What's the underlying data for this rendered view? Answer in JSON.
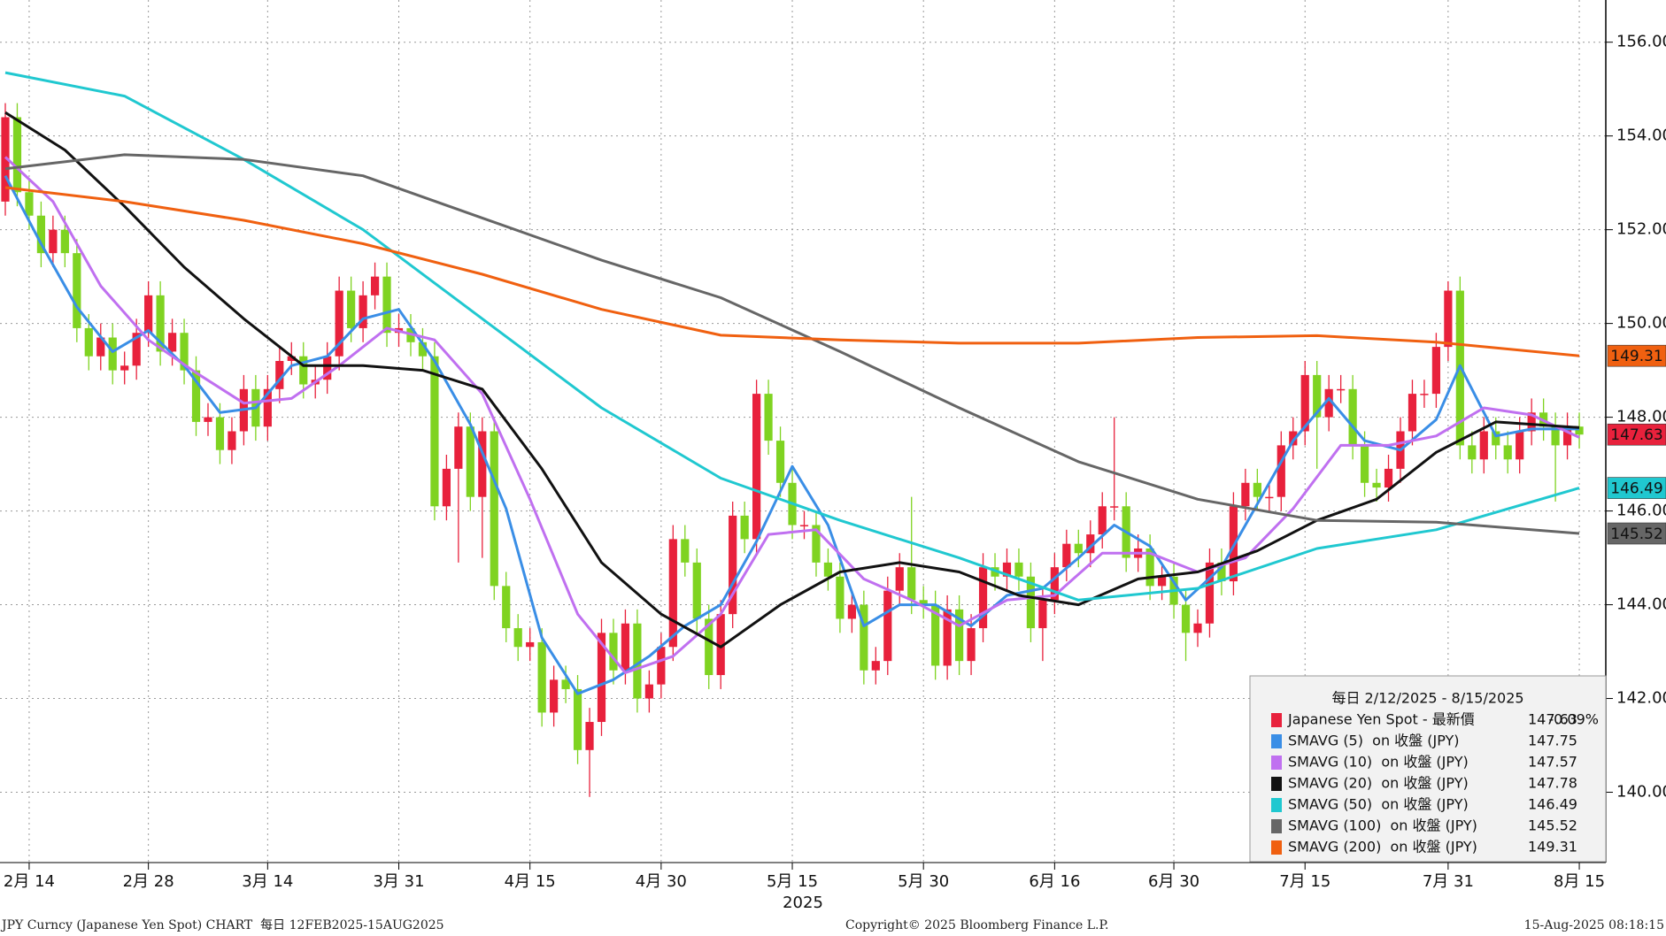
{
  "chart_data": {
    "type": "candlestick",
    "x_label": "2025",
    "legend_header": "每日 2/12/2025 - 8/15/2025",
    "spot_name": "Japanese Yen Spot - 最新價",
    "last": 147.63,
    "change": "-0.09%",
    "up_color": "#e8213c",
    "down_color": "#7fd321",
    "spot_label_color": "#ffffff",
    "grid": true,
    "ylim": [
      138.5,
      156.9
    ],
    "yticks": [
      {
        "value": 140,
        "label": "140.00"
      },
      {
        "value": 142,
        "label": "142.00"
      },
      {
        "value": 144,
        "label": "144.00"
      },
      {
        "value": 146,
        "label": "146.00"
      },
      {
        "value": 148,
        "label": "148.00"
      },
      {
        "value": 150,
        "label": "150.00"
      },
      {
        "value": 152,
        "label": "152.00"
      },
      {
        "value": 154,
        "label": "154.00"
      },
      {
        "value": 156,
        "label": "156.00"
      }
    ],
    "xticks": [
      {
        "value": "2025-02-14",
        "label": "2月 14"
      },
      {
        "value": "2025-02-28",
        "label": "2月 28"
      },
      {
        "value": "2025-03-14",
        "label": "3月 14"
      },
      {
        "value": "2025-03-31",
        "label": "3月 31"
      },
      {
        "value": "2025-04-15",
        "label": "4月 15"
      },
      {
        "value": "2025-04-30",
        "label": "4月 30"
      },
      {
        "value": "2025-05-15",
        "label": "5月 15"
      },
      {
        "value": "2025-05-30",
        "label": "5月 30"
      },
      {
        "value": "2025-06-16",
        "label": "6月 16"
      },
      {
        "value": "2025-06-30",
        "label": "6月 30"
      },
      {
        "value": "2025-07-15",
        "label": "7月 15"
      },
      {
        "value": "2025-07-31",
        "label": "7月 31"
      },
      {
        "value": "2025-08-15",
        "label": "8月 15"
      }
    ],
    "x": [
      "2025-02-12",
      "2025-02-13",
      "2025-02-14",
      "2025-02-17",
      "2025-02-18",
      "2025-02-19",
      "2025-02-20",
      "2025-02-21",
      "2025-02-24",
      "2025-02-25",
      "2025-02-26",
      "2025-02-27",
      "2025-02-28",
      "2025-03-03",
      "2025-03-04",
      "2025-03-05",
      "2025-03-06",
      "2025-03-07",
      "2025-03-10",
      "2025-03-11",
      "2025-03-12",
      "2025-03-13",
      "2025-03-14",
      "2025-03-17",
      "2025-03-18",
      "2025-03-19",
      "2025-03-20",
      "2025-03-21",
      "2025-03-24",
      "2025-03-25",
      "2025-03-26",
      "2025-03-27",
      "2025-03-28",
      "2025-03-31",
      "2025-04-01",
      "2025-04-02",
      "2025-04-03",
      "2025-04-04",
      "2025-04-07",
      "2025-04-08",
      "2025-04-09",
      "2025-04-10",
      "2025-04-11",
      "2025-04-14",
      "2025-04-15",
      "2025-04-16",
      "2025-04-17",
      "2025-04-18",
      "2025-04-21",
      "2025-04-22",
      "2025-04-23",
      "2025-04-24",
      "2025-04-25",
      "2025-04-28",
      "2025-04-29",
      "2025-04-30",
      "2025-05-01",
      "2025-05-02",
      "2025-05-05",
      "2025-05-06",
      "2025-05-07",
      "2025-05-08",
      "2025-05-09",
      "2025-05-12",
      "2025-05-13",
      "2025-05-14",
      "2025-05-15",
      "2025-05-16",
      "2025-05-19",
      "2025-05-20",
      "2025-05-21",
      "2025-05-22",
      "2025-05-23",
      "2025-05-26",
      "2025-05-27",
      "2025-05-28",
      "2025-05-29",
      "2025-05-30",
      "2025-06-02",
      "2025-06-03",
      "2025-06-04",
      "2025-06-05",
      "2025-06-06",
      "2025-06-09",
      "2025-06-10",
      "2025-06-11",
      "2025-06-12",
      "2025-06-13",
      "2025-06-16",
      "2025-06-17",
      "2025-06-18",
      "2025-06-19",
      "2025-06-20",
      "2025-06-23",
      "2025-06-24",
      "2025-06-25",
      "2025-06-26",
      "2025-06-27",
      "2025-06-30",
      "2025-07-01",
      "2025-07-02",
      "2025-07-03",
      "2025-07-04",
      "2025-07-07",
      "2025-07-08",
      "2025-07-09",
      "2025-07-10",
      "2025-07-11",
      "2025-07-14",
      "2025-07-15",
      "2025-07-16",
      "2025-07-17",
      "2025-07-18",
      "2025-07-21",
      "2025-07-22",
      "2025-07-23",
      "2025-07-24",
      "2025-07-25",
      "2025-07-28",
      "2025-07-29",
      "2025-07-30",
      "2025-07-31",
      "2025-08-01",
      "2025-08-04",
      "2025-08-05",
      "2025-08-06",
      "2025-08-07",
      "2025-08-08",
      "2025-08-11",
      "2025-08-12",
      "2025-08-13",
      "2025-08-14",
      "2025-08-15"
    ],
    "open": [
      152.6,
      154.4,
      152.8,
      152.3,
      151.5,
      152.0,
      151.5,
      149.9,
      149.3,
      149.7,
      149.0,
      149.1,
      149.8,
      150.6,
      149.4,
      149.8,
      149.0,
      147.9,
      148.0,
      147.3,
      147.7,
      148.6,
      147.8,
      148.6,
      149.2,
      149.3,
      148.7,
      148.8,
      149.3,
      150.7,
      149.9,
      150.6,
      151.0,
      149.8,
      149.9,
      149.6,
      149.3,
      146.1,
      146.9,
      147.8,
      146.3,
      147.7,
      144.4,
      143.5,
      143.1,
      143.2,
      141.7,
      142.4,
      142.2,
      140.9,
      141.5,
      143.4,
      142.6,
      143.6,
      142.0,
      142.3,
      143.1,
      145.4,
      144.9,
      143.7,
      142.5,
      143.8,
      145.9,
      145.4,
      148.5,
      147.5,
      146.6,
      145.7,
      145.7,
      144.9,
      144.6,
      143.7,
      144.0,
      142.6,
      142.8,
      144.3,
      144.8,
      144.1,
      144.0,
      142.7,
      143.9,
      142.8,
      143.5,
      144.8,
      144.6,
      144.9,
      144.6,
      143.5,
      144.1,
      144.8,
      145.3,
      145.1,
      145.5,
      146.1,
      146.1,
      145.0,
      145.2,
      144.4,
      144.6,
      144.0,
      143.4,
      143.6,
      144.9,
      144.5,
      146.1,
      146.6,
      146.3,
      146.3,
      147.4,
      147.7,
      148.9,
      148.0,
      148.6,
      148.6,
      147.4,
      146.6,
      146.5,
      146.9,
      147.7,
      148.5,
      148.5,
      149.5,
      150.7,
      147.4,
      147.1,
      147.7,
      147.4,
      147.1,
      147.7,
      148.1,
      147.8,
      147.4,
      147.8
    ],
    "high": [
      154.7,
      154.7,
      153.1,
      152.6,
      152.3,
      152.3,
      151.8,
      150.2,
      150.0,
      150.0,
      149.4,
      150.1,
      150.9,
      150.9,
      150.1,
      150.1,
      149.3,
      148.3,
      148.3,
      148.0,
      148.9,
      148.9,
      148.9,
      149.5,
      149.6,
      149.6,
      149.1,
      149.6,
      151.0,
      151.0,
      150.9,
      151.3,
      151.3,
      150.2,
      150.2,
      149.9,
      149.6,
      147.2,
      148.1,
      148.1,
      148.0,
      148.0,
      144.7,
      143.8,
      143.5,
      143.5,
      142.7,
      142.7,
      142.5,
      141.8,
      143.7,
      143.7,
      143.9,
      143.9,
      142.6,
      143.4,
      145.7,
      145.7,
      145.2,
      144.0,
      144.1,
      146.2,
      146.2,
      148.8,
      148.8,
      147.8,
      146.9,
      146.0,
      146.0,
      145.2,
      144.9,
      144.3,
      144.3,
      143.1,
      144.6,
      145.1,
      146.3,
      144.4,
      144.3,
      144.2,
      144.2,
      143.8,
      145.1,
      145.1,
      145.2,
      145.2,
      144.9,
      144.4,
      145.1,
      145.6,
      145.6,
      145.8,
      146.4,
      148.0,
      146.4,
      145.5,
      145.5,
      144.9,
      144.9,
      144.3,
      143.9,
      145.2,
      145.2,
      146.4,
      146.9,
      146.9,
      146.6,
      147.7,
      148.0,
      149.2,
      149.2,
      148.9,
      148.9,
      148.9,
      147.7,
      146.9,
      147.2,
      148.0,
      148.8,
      148.8,
      149.8,
      150.9,
      151.0,
      147.7,
      148.0,
      148.0,
      147.7,
      148.0,
      148.4,
      148.4,
      148.1,
      148.1,
      148.1
    ],
    "low": [
      152.3,
      152.5,
      152.0,
      151.2,
      151.2,
      151.2,
      149.6,
      149.0,
      149.0,
      148.7,
      148.7,
      148.8,
      149.5,
      149.1,
      149.1,
      148.7,
      147.6,
      147.6,
      147.0,
      147.0,
      147.4,
      147.5,
      147.5,
      148.3,
      148.9,
      148.4,
      148.4,
      148.5,
      149.0,
      149.6,
      149.6,
      150.3,
      149.5,
      149.5,
      149.3,
      149.0,
      145.8,
      145.8,
      144.9,
      146.0,
      145.0,
      144.1,
      143.2,
      142.8,
      142.8,
      141.4,
      141.4,
      141.9,
      140.6,
      139.9,
      141.2,
      142.3,
      142.3,
      141.7,
      141.7,
      142.0,
      142.8,
      144.6,
      143.4,
      142.2,
      142.2,
      143.5,
      145.1,
      145.1,
      147.2,
      146.3,
      145.4,
      145.4,
      144.6,
      144.3,
      143.4,
      143.4,
      142.3,
      142.3,
      142.5,
      144.0,
      143.8,
      143.7,
      142.4,
      142.4,
      142.5,
      142.5,
      143.2,
      144.3,
      144.3,
      144.3,
      143.2,
      142.8,
      143.8,
      144.5,
      144.8,
      144.8,
      145.2,
      145.8,
      144.7,
      144.7,
      144.1,
      144.1,
      143.7,
      142.8,
      143.1,
      143.3,
      144.2,
      144.2,
      145.8,
      146.0,
      146.0,
      146.0,
      147.1,
      147.4,
      146.9,
      147.7,
      148.3,
      147.1,
      146.3,
      146.2,
      146.2,
      146.6,
      147.4,
      148.2,
      148.2,
      149.2,
      147.1,
      146.8,
      146.8,
      147.1,
      146.8,
      146.8,
      147.4,
      147.5,
      146.2,
      147.1,
      147.33
    ],
    "close": [
      154.4,
      152.8,
      152.3,
      151.5,
      152.0,
      151.5,
      149.9,
      149.3,
      149.7,
      149.0,
      149.1,
      149.8,
      150.6,
      149.4,
      149.8,
      149.0,
      147.9,
      148.0,
      147.3,
      147.7,
      148.6,
      147.8,
      148.6,
      149.2,
      149.3,
      148.7,
      148.8,
      149.3,
      150.7,
      149.9,
      150.6,
      151.0,
      149.8,
      149.9,
      149.6,
      149.3,
      146.1,
      146.9,
      147.8,
      146.3,
      147.7,
      144.4,
      143.5,
      143.1,
      143.2,
      141.7,
      142.4,
      142.2,
      140.9,
      141.5,
      143.4,
      142.6,
      143.6,
      142.0,
      142.3,
      143.1,
      145.4,
      144.9,
      143.7,
      142.5,
      143.8,
      145.9,
      145.4,
      148.5,
      147.5,
      146.6,
      145.7,
      145.7,
      144.9,
      144.6,
      143.7,
      144.0,
      142.6,
      142.8,
      144.3,
      144.8,
      144.1,
      144.0,
      142.7,
      143.9,
      142.8,
      143.5,
      144.8,
      144.6,
      144.9,
      144.6,
      143.5,
      144.1,
      144.8,
      145.3,
      145.1,
      145.5,
      146.1,
      146.1,
      145.0,
      145.2,
      144.4,
      144.6,
      144.0,
      143.4,
      143.6,
      144.9,
      144.5,
      146.1,
      146.6,
      146.3,
      146.3,
      147.4,
      147.7,
      148.9,
      148.0,
      148.6,
      148.6,
      147.4,
      146.6,
      146.5,
      146.9,
      147.7,
      148.5,
      148.5,
      149.5,
      150.7,
      147.4,
      147.1,
      147.7,
      147.4,
      147.1,
      147.7,
      148.1,
      147.8,
      147.4,
      147.8,
      147.63
    ],
    "series": [
      {
        "name": "SMAVG (5)  on 收盤 (JPY)",
        "color": "#3a8ee6",
        "last": 147.75,
        "x": [
          "2025-02-12",
          "2025-02-17",
          "2025-02-20",
          "2025-02-25",
          "2025-02-28",
          "2025-03-05",
          "2025-03-10",
          "2025-03-13",
          "2025-03-18",
          "2025-03-21",
          "2025-03-26",
          "2025-03-31",
          "2025-04-03",
          "2025-04-08",
          "2025-04-11",
          "2025-04-16",
          "2025-04-21",
          "2025-04-24",
          "2025-04-29",
          "2025-05-02",
          "2025-05-07",
          "2025-05-12",
          "2025-05-15",
          "2025-05-20",
          "2025-05-23",
          "2025-05-28",
          "2025-06-02",
          "2025-06-05",
          "2025-06-10",
          "2025-06-13",
          "2025-06-18",
          "2025-06-23",
          "2025-06-26",
          "2025-07-01",
          "2025-07-04",
          "2025-07-09",
          "2025-07-14",
          "2025-07-17",
          "2025-07-22",
          "2025-07-25",
          "2025-07-30",
          "2025-08-01",
          "2025-08-06",
          "2025-08-11",
          "2025-08-15"
        ],
        "values": [
          153.15,
          151.7,
          150.35,
          149.4,
          149.85,
          149.1,
          148.1,
          148.2,
          149.1,
          149.3,
          150.1,
          150.3,
          149.2,
          147.85,
          146.05,
          143.3,
          142.1,
          142.4,
          142.9,
          143.55,
          144.0,
          145.35,
          146.95,
          145.7,
          143.55,
          144.0,
          144.0,
          143.55,
          144.2,
          144.35,
          145.0,
          145.7,
          145.25,
          144.1,
          144.8,
          146.15,
          147.5,
          148.4,
          147.5,
          147.3,
          147.95,
          149.1,
          147.6,
          147.75,
          147.75
        ]
      },
      {
        "name": "SMAVG (10)  on 收盤 (JPY)",
        "color": "#c070f0",
        "last": 147.57,
        "x": [
          "2025-02-12",
          "2025-02-18",
          "2025-02-24",
          "2025-02-28",
          "2025-03-06",
          "2025-03-12",
          "2025-03-18",
          "2025-03-24",
          "2025-03-28",
          "2025-04-03",
          "2025-04-09",
          "2025-04-15",
          "2025-04-21",
          "2025-04-25",
          "2025-05-01",
          "2025-05-07",
          "2025-05-13",
          "2025-05-19",
          "2025-05-23",
          "2025-05-29",
          "2025-06-04",
          "2025-06-10",
          "2025-06-16",
          "2025-06-20",
          "2025-06-26",
          "2025-07-02",
          "2025-07-08",
          "2025-07-14",
          "2025-07-18",
          "2025-07-24",
          "2025-07-30",
          "2025-08-05",
          "2025-08-11",
          "2025-08-15"
        ],
        "values": [
          153.55,
          152.6,
          150.8,
          149.65,
          148.95,
          148.3,
          148.4,
          149.1,
          149.9,
          149.65,
          148.5,
          146.25,
          143.8,
          142.55,
          142.9,
          143.8,
          145.5,
          145.6,
          144.55,
          144.1,
          143.55,
          144.1,
          144.2,
          145.1,
          145.1,
          144.7,
          145.0,
          146.05,
          147.4,
          147.4,
          147.6,
          148.2,
          148.05,
          147.57
        ]
      },
      {
        "name": "SMAVG (20)  on 收盤 (JPY)",
        "color": "#111111",
        "last": 147.78,
        "x": [
          "2025-02-12",
          "2025-02-19",
          "2025-02-26",
          "2025-03-05",
          "2025-03-12",
          "2025-03-19",
          "2025-03-26",
          "2025-04-02",
          "2025-04-09",
          "2025-04-16",
          "2025-04-23",
          "2025-04-30",
          "2025-05-07",
          "2025-05-14",
          "2025-05-21",
          "2025-05-28",
          "2025-06-04",
          "2025-06-11",
          "2025-06-18",
          "2025-06-25",
          "2025-07-02",
          "2025-07-09",
          "2025-07-16",
          "2025-07-23",
          "2025-07-30",
          "2025-08-06",
          "2025-08-15"
        ],
        "values": [
          154.5,
          153.7,
          152.5,
          151.2,
          150.1,
          149.1,
          149.1,
          149.0,
          148.6,
          146.9,
          144.9,
          143.8,
          143.1,
          144.0,
          144.7,
          144.9,
          144.7,
          144.2,
          144.0,
          144.55,
          144.7,
          145.15,
          145.8,
          146.25,
          147.25,
          147.9,
          147.78
        ]
      },
      {
        "name": "SMAVG (50)  on 收盤 (JPY)",
        "color": "#20c8d0",
        "last": 146.49,
        "tag": true,
        "label_color": "#000000",
        "x": [
          "2025-02-12",
          "2025-02-26",
          "2025-03-12",
          "2025-03-26",
          "2025-04-09",
          "2025-04-23",
          "2025-05-07",
          "2025-05-21",
          "2025-06-04",
          "2025-06-18",
          "2025-07-02",
          "2025-07-16",
          "2025-07-30",
          "2025-08-15"
        ],
        "values": [
          155.35,
          154.85,
          153.5,
          152.0,
          150.1,
          148.2,
          146.7,
          145.8,
          145.0,
          144.1,
          144.35,
          145.2,
          145.6,
          146.49
        ]
      },
      {
        "name": "SMAVG (100)  on 收盤 (JPY)",
        "color": "#666666",
        "last": 145.52,
        "tag": true,
        "label_color": "#ffffff",
        "x": [
          "2025-02-12",
          "2025-02-26",
          "2025-03-12",
          "2025-03-26",
          "2025-04-09",
          "2025-04-23",
          "2025-05-07",
          "2025-05-21",
          "2025-06-04",
          "2025-06-18",
          "2025-07-02",
          "2025-07-16",
          "2025-07-30",
          "2025-08-15"
        ],
        "values": [
          153.3,
          153.6,
          153.5,
          153.15,
          152.25,
          151.35,
          150.55,
          149.4,
          148.2,
          147.05,
          146.25,
          145.8,
          145.76,
          145.52
        ]
      },
      {
        "name": "SMAVG (200)  on 收盤 (JPY)",
        "color": "#f06010",
        "last": 149.31,
        "tag": true,
        "label_color": "#000000",
        "x": [
          "2025-02-12",
          "2025-02-26",
          "2025-03-12",
          "2025-03-26",
          "2025-04-09",
          "2025-04-23",
          "2025-05-07",
          "2025-05-21",
          "2025-06-04",
          "2025-06-18",
          "2025-07-02",
          "2025-07-16",
          "2025-07-30",
          "2025-08-15"
        ],
        "values": [
          152.9,
          152.6,
          152.2,
          151.7,
          151.05,
          150.3,
          149.75,
          149.65,
          149.58,
          149.58,
          149.7,
          149.74,
          149.6,
          149.31
        ]
      }
    ]
  },
  "footer": {
    "left": "JPY Curncy (Japanese Yen Spot) CHART  每日 12FEB2025-15AUG2025",
    "center": "Copyright© 2025 Bloomberg Finance L.P.",
    "right": "15-Aug-2025 08:18:15"
  }
}
